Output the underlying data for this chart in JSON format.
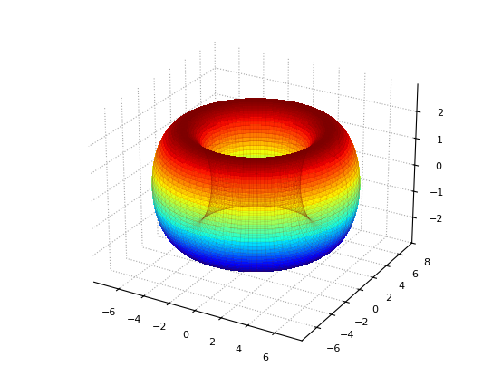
{
  "R": 5,
  "r": 2,
  "n_u": 80,
  "n_v": 80,
  "colormap": "jet",
  "background_color": "#ffffff",
  "elev": 25,
  "azim": -60,
  "xlim": [
    -8,
    8
  ],
  "ylim": [
    -8,
    8
  ],
  "zlim": [
    -3,
    3
  ],
  "xticks": [
    -6,
    -4,
    -2,
    0,
    2,
    4,
    6
  ],
  "yticks": [
    -6,
    -4,
    -2,
    0,
    2,
    4,
    6,
    8
  ],
  "zticks": [
    -2,
    -1,
    0,
    1,
    2
  ],
  "surface_linewidth": 0.2,
  "wire_linewidth": 0.15,
  "wire_alpha": 0.35
}
